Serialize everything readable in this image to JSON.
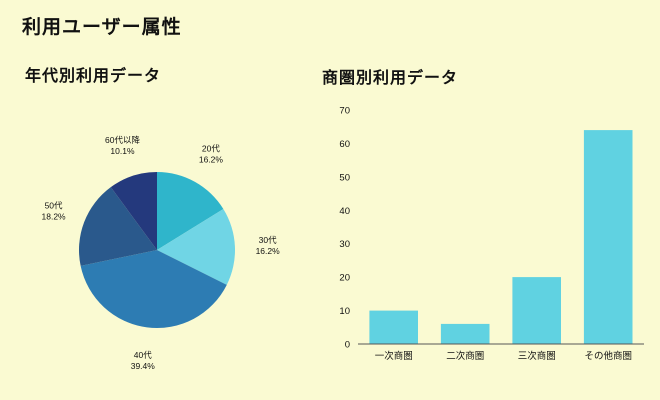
{
  "page": {
    "title": "利用ユーザー属性"
  },
  "pie_section": {
    "title": "年代別利用データ"
  },
  "bar_section": {
    "title": "商圏別利用データ"
  },
  "chart_data": [
    {
      "type": "pie",
      "title": "年代別利用データ",
      "labels": [
        "20代",
        "30代",
        "40代",
        "50代",
        "60代以降"
      ],
      "values": [
        16.2,
        16.2,
        39.4,
        18.2,
        10.1
      ],
      "percent_labels": [
        "16.2%",
        "16.2%",
        "39.4%",
        "18.2%",
        "10.1%"
      ],
      "colors": [
        "#2fb5cb",
        "#70d5e5",
        "#2d7cb3",
        "#2a598c",
        "#24397d"
      ],
      "start_angle": "12-oclock",
      "direction": "clockwise",
      "label_position": "outside",
      "legend": "none"
    },
    {
      "type": "bar",
      "title": "商圏別利用データ",
      "categories": [
        "一次商圏",
        "二次商圏",
        "三次商圏",
        "その他商圏"
      ],
      "values": [
        10,
        6,
        20,
        64
      ],
      "ylim": [
        0,
        70
      ],
      "ytick_step": 10,
      "yticks": [
        0,
        10,
        20,
        30,
        40,
        50,
        60,
        70
      ],
      "bar_color": "#60d2e1",
      "grid": false,
      "legend": "none"
    }
  ]
}
